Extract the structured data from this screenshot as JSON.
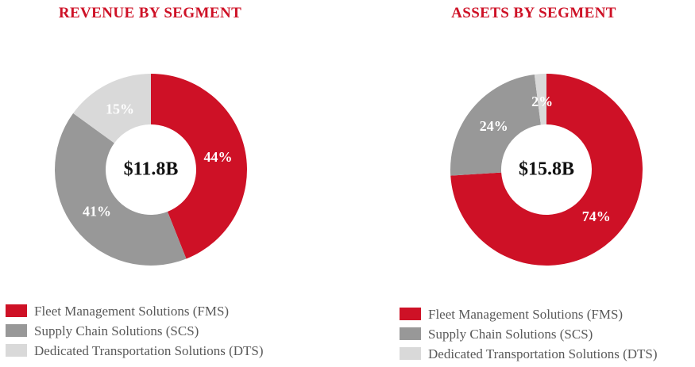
{
  "styles": {
    "title_color": "#CE1126",
    "legend_text_color": "#595959",
    "center_label_color": "#111111",
    "percent_label_color": "#FFFFFF",
    "background_color": "#FFFFFF"
  },
  "chart_data": [
    {
      "type": "pie",
      "variant": "donut",
      "title": "REVENUE BY SEGMENT",
      "center_label": "$11.8B",
      "categories": [
        "Fleet Management Solutions (FMS)",
        "Supply Chain Solutions (SCS)",
        "Dedicated Transportation Solutions (DTS)"
      ],
      "values": [
        44,
        41,
        15
      ],
      "value_labels": [
        "44%",
        "41%",
        "15%"
      ],
      "unit": "%",
      "colors": [
        "#CE1126",
        "#989898",
        "#D9D9D9"
      ],
      "start_angle_deg": 0,
      "direction": "clockwise",
      "donut_hole_ratio": 0.47,
      "legend_position": "bottom-left"
    },
    {
      "type": "pie",
      "variant": "donut",
      "title": "ASSETS BY SEGMENT",
      "center_label": "$15.8B",
      "categories": [
        "Fleet Management Solutions (FMS)",
        "Supply Chain Solutions (SCS)",
        "Dedicated Transportation Solutions (DTS)"
      ],
      "values": [
        74,
        24,
        2
      ],
      "value_labels": [
        "74%",
        "24%",
        "2%"
      ],
      "unit": "%",
      "colors": [
        "#CE1126",
        "#989898",
        "#D9D9D9"
      ],
      "start_angle_deg": 0,
      "direction": "clockwise",
      "donut_hole_ratio": 0.47,
      "legend_position": "bottom-left"
    }
  ]
}
